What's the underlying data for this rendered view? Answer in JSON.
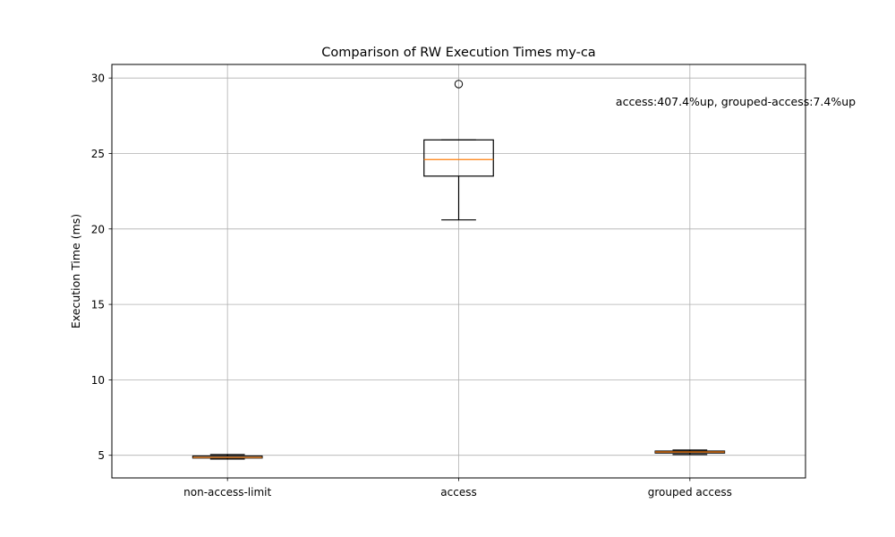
{
  "chart_data": {
    "type": "box",
    "title": "Comparison of RW Execution Times my-ca",
    "xlabel": "",
    "ylabel": "Execution Time (ms)",
    "ylim": [
      3.5,
      30.9
    ],
    "yticks": [
      5,
      10,
      15,
      20,
      25,
      30
    ],
    "grid": true,
    "categories": [
      "non-access-limit",
      "access",
      "grouped access"
    ],
    "boxes": [
      {
        "whisker_low": 4.75,
        "q1": 4.82,
        "median": 4.86,
        "q3": 4.95,
        "whisker_high": 5.05,
        "outliers": []
      },
      {
        "whisker_low": 20.6,
        "q1": 23.5,
        "median": 24.6,
        "q3": 25.9,
        "whisker_high": 25.9,
        "outliers": [
          29.6
        ]
      },
      {
        "whisker_low": 5.05,
        "q1": 5.15,
        "median": 5.22,
        "q3": 5.28,
        "whisker_high": 5.35,
        "outliers": []
      }
    ],
    "annotation": "access:407.4%up, grouped-access:7.4%up",
    "colors": {
      "median": "#ff7f0e",
      "box": "#000000",
      "grid": "#b0b0b0"
    }
  }
}
